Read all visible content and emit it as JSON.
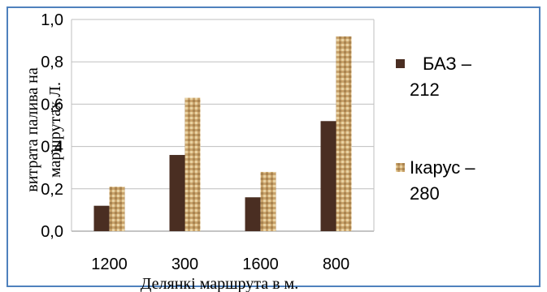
{
  "chart_data": {
    "type": "bar",
    "categories": [
      "1200",
      "300",
      "1600",
      "800"
    ],
    "series": [
      {
        "name": "БАЗ – 212",
        "legend_lines": [
          "БАЗ –",
          "212"
        ],
        "values": [
          0.12,
          0.36,
          0.16,
          0.52
        ],
        "color": "#4a2e22"
      },
      {
        "name": "Ікарус – 280",
        "legend_lines": [
          "Ікарус –",
          "280"
        ],
        "values": [
          0.21,
          0.63,
          0.28,
          0.92
        ],
        "color": "#c9a36b"
      }
    ],
    "ylim": [
      0,
      1.0
    ],
    "yticks": [
      "0,0",
      "0,2",
      "0,4",
      "0,6",
      "0,8",
      "1,0"
    ],
    "ylabel_lines": [
      "витрата палива на",
      "маршрутах Л."
    ],
    "xlabel": "Делянкі маршрута в м.",
    "grid": true,
    "legend": "right"
  }
}
